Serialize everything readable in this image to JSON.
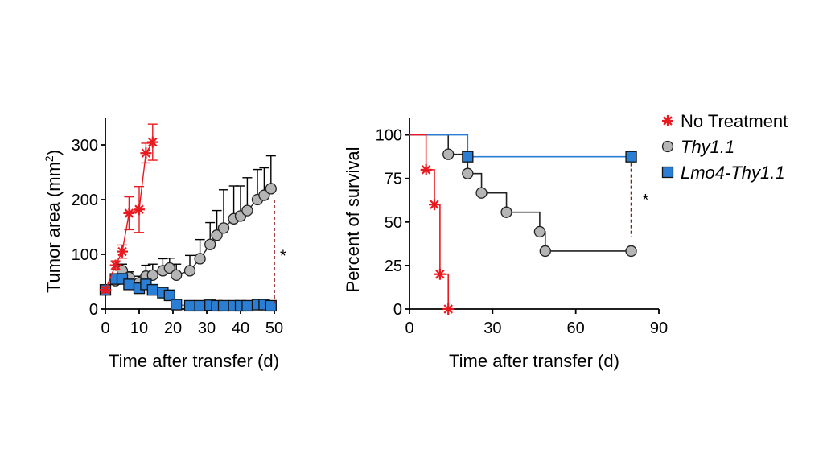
{
  "legend": {
    "items": [
      {
        "label": "No Treatment",
        "marker": "star",
        "color": "#e8191f",
        "italic": false
      },
      {
        "label": "Thy1.1",
        "marker": "circle",
        "color": "#b5b5b5",
        "italic": true
      },
      {
        "label": "Lmo4-Thy1.1",
        "marker": "square",
        "color": "#2a7fd4",
        "italic": true
      }
    ]
  },
  "chart_data": [
    {
      "type": "line",
      "title": "",
      "xlabel": "Time after transfer (d)",
      "ylabel": "Tumor area (mm²)",
      "ylabel_base": "Tumor area (mm",
      "ylabel_sup": "2",
      "ylabel_close": ")",
      "xlim": [
        0,
        50
      ],
      "ylim": [
        0,
        350
      ],
      "xticks": [
        0,
        10,
        20,
        30,
        40,
        50
      ],
      "yticks": [
        0,
        100,
        200,
        300
      ],
      "significance": {
        "text": "*",
        "x": 50,
        "y_from": 200,
        "y_to": 10
      },
      "series": [
        {
          "name": "No Treatment",
          "marker": "star",
          "color": "#e8191f",
          "x": [
            0,
            3,
            5,
            7,
            10,
            12,
            14
          ],
          "y": [
            35,
            80,
            105,
            175,
            182,
            285,
            305
          ],
          "err": [
            5,
            8,
            12,
            30,
            42,
            18,
            33
          ]
        },
        {
          "name": "Thy1.1",
          "marker": "circle",
          "color": "#b5b5b5",
          "x": [
            0,
            3,
            5,
            7,
            10,
            12,
            14,
            17,
            19,
            21,
            25,
            28,
            31,
            33,
            35,
            38,
            40,
            42,
            45,
            47,
            49
          ],
          "y": [
            35,
            52,
            70,
            58,
            48,
            60,
            62,
            70,
            75,
            62,
            70,
            92,
            118,
            135,
            148,
            165,
            170,
            180,
            200,
            208,
            220
          ],
          "err": [
            5,
            10,
            12,
            10,
            12,
            20,
            20,
            22,
            18,
            20,
            28,
            35,
            40,
            45,
            70,
            60,
            55,
            60,
            55,
            50,
            60
          ]
        },
        {
          "name": "Lmo4-Thy1.1",
          "marker": "square",
          "color": "#2a7fd4",
          "x": [
            0,
            3,
            5,
            7,
            10,
            12,
            14,
            17,
            19,
            21,
            25,
            28,
            31,
            33,
            35,
            38,
            40,
            42,
            45,
            47,
            49
          ],
          "y": [
            35,
            55,
            55,
            45,
            38,
            45,
            35,
            30,
            25,
            8,
            6,
            6,
            7,
            6,
            6,
            6,
            6,
            6,
            8,
            8,
            6
          ],
          "err": [
            5,
            8,
            10,
            10,
            8,
            10,
            10,
            8,
            10,
            3,
            2,
            2,
            2,
            2,
            2,
            2,
            2,
            2,
            3,
            3,
            2
          ]
        }
      ]
    },
    {
      "type": "line",
      "subtype": "survival-step",
      "title": "",
      "xlabel": "Time after transfer (d)",
      "ylabel": "Percent of survival",
      "xlim": [
        0,
        90
      ],
      "ylim": [
        0,
        110
      ],
      "xticks": [
        0,
        30,
        60,
        90
      ],
      "yticks": [
        0,
        25,
        50,
        75,
        100
      ],
      "significance": {
        "text": "*",
        "x": 80,
        "y_from": 87.5,
        "y_to": 43
      },
      "series": [
        {
          "name": "No Treatment",
          "marker": "star",
          "color": "#e8191f",
          "x": [
            0,
            6,
            9,
            11,
            14
          ],
          "y": [
            100,
            80,
            60,
            20,
            0
          ]
        },
        {
          "name": "Thy1.1",
          "marker": "circle",
          "color": "#b5b5b5",
          "x": [
            0,
            14,
            21,
            26,
            35,
            47,
            49,
            80
          ],
          "y": [
            100,
            88.9,
            77.8,
            66.7,
            55.6,
            44.4,
            33.3,
            33.3
          ]
        },
        {
          "name": "Lmo4-Thy1.1",
          "marker": "square",
          "color": "#2a7fd4",
          "x": [
            0,
            21,
            80
          ],
          "y": [
            100,
            87.5,
            87.5
          ]
        }
      ]
    }
  ]
}
